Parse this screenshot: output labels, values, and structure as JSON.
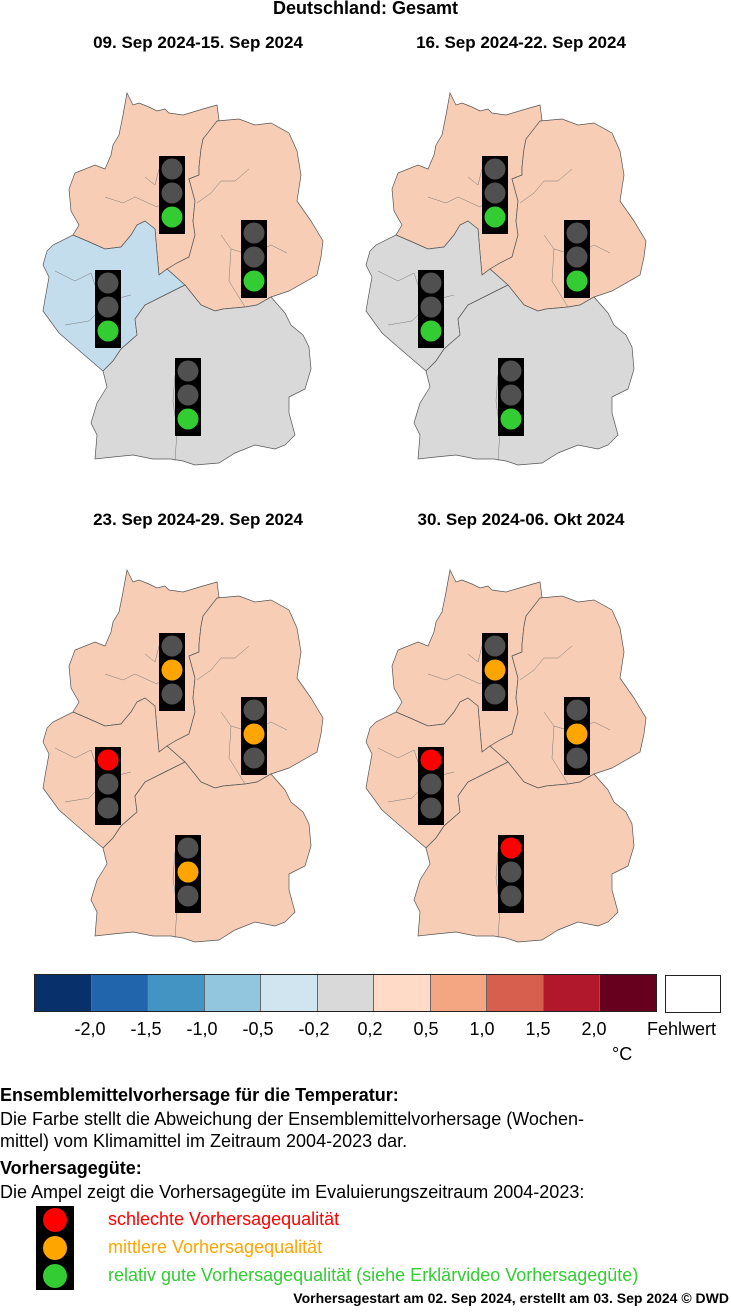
{
  "title": "Deutschland: Gesamt",
  "colors": {
    "scale": [
      "#08306b",
      "#2166ac",
      "#4393c3",
      "#92c5de",
      "#d1e5f0",
      "#d9d9d9",
      "#fddbc7",
      "#f4a582",
      "#d6604d",
      "#b2182b",
      "#67001f"
    ],
    "pale_blue": "#c4dded",
    "grey": "#d9d9d9",
    "pale_red": "#f7cdb5",
    "red": "#ff0000",
    "amber": "#ffa500",
    "green": "#33cc33",
    "off": "#505050"
  },
  "panels": [
    {
      "period": "09. Sep 2024-15. Sep 2024",
      "regions": {
        "north": "pale_red",
        "east": "pale_red",
        "west": "pale_blue",
        "south": "grey"
      },
      "lights": {
        "north": "green",
        "east": "green",
        "west": "green",
        "south": "green"
      }
    },
    {
      "period": "16. Sep 2024-22. Sep 2024",
      "regions": {
        "north": "pale_red",
        "east": "pale_red",
        "west": "grey",
        "south": "grey"
      },
      "lights": {
        "north": "green",
        "east": "green",
        "west": "green",
        "south": "green"
      }
    },
    {
      "period": "23. Sep 2024-29. Sep 2024",
      "regions": {
        "north": "pale_red",
        "east": "pale_red",
        "west": "pale_red",
        "south": "pale_red"
      },
      "lights": {
        "north": "amber",
        "east": "amber",
        "west": "red",
        "south": "amber"
      }
    },
    {
      "period": "30. Sep 2024-06. Okt 2024",
      "regions": {
        "north": "pale_red",
        "east": "pale_red",
        "west": "pale_red",
        "south": "pale_red"
      },
      "lights": {
        "north": "amber",
        "east": "amber",
        "west": "red",
        "south": "red"
      }
    }
  ],
  "legend": {
    "ticks": [
      "-2,0",
      "-1,5",
      "-1,0",
      "-0,5",
      "-0,2",
      "0,2",
      "0,5",
      "1,0",
      "1,5",
      "2,0"
    ],
    "unit": "°C",
    "missing_label": "Fehlwert"
  },
  "text": {
    "ensemble_heading": "Ensemblemittelvorhersage für die Temperatur:",
    "ensemble_line1": "Die Farbe stellt die Abweichung der Ensemblemittelvorhersage (Wochen-",
    "ensemble_line2": "mittel) vom Klimamittel im Zeitraum 2004-2023 dar.",
    "quality_heading": "Vorhersagegüte:",
    "quality_line": "Die Ampel zeigt die Vorhersagegüte im Evaluierungszeitraum 2004-2023:",
    "bad": "schlechte Vorhersagequalität",
    "medium": "mittlere Vorhersagequalität",
    "good": "relativ gute Vorhersagequalität (siehe Erklärvideo Vorhersagegüte)"
  },
  "footer": "Vorhersagestart am 02. Sep 2024, erstellt am 03. Sep 2024 © DWD"
}
